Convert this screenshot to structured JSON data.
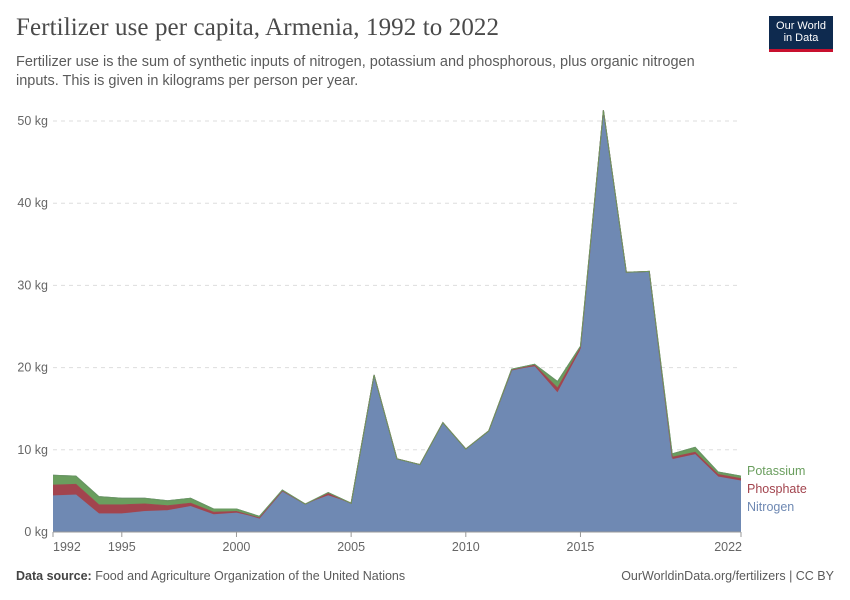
{
  "header": {
    "title": "Fertilizer use per capita, Armenia, 1992 to 2022",
    "subtitle": "Fertilizer use is the sum of synthetic inputs of nitrogen, potassium and phosphorous, plus organic nitrogen inputs. This is given in kilograms per person per year."
  },
  "logo": {
    "line1": "Our World",
    "line2": "in Data",
    "bg": "#0e2a4f",
    "accent": "#c8102e"
  },
  "footer": {
    "source_label": "Data source:",
    "source_text": "Food and Agriculture Organization of the United Nations",
    "license": "OurWorldinData.org/fertilizers | CC BY"
  },
  "chart_data": {
    "type": "area",
    "stacked": true,
    "title": "Fertilizer use per capita, Armenia, 1992 to 2022",
    "xlabel": "",
    "ylabel": "",
    "xlim": [
      1992,
      2022
    ],
    "ylim": [
      0,
      50
    ],
    "y_ticks": [
      0,
      10,
      20,
      30,
      40,
      50
    ],
    "y_tick_labels": [
      "0 kg",
      "10 kg",
      "20 kg",
      "30 kg",
      "40 kg",
      "50 kg"
    ],
    "x_ticks": [
      1992,
      1995,
      2000,
      2005,
      2010,
      2015,
      2022
    ],
    "x_tick_labels": [
      "1992",
      "1995",
      "2000",
      "2005",
      "2010",
      "2015",
      "2022"
    ],
    "grid": true,
    "legend_position": "right-end",
    "x": [
      1992,
      1993,
      1994,
      1995,
      1996,
      1997,
      1998,
      1999,
      2000,
      2001,
      2002,
      2003,
      2004,
      2005,
      2006,
      2007,
      2008,
      2009,
      2010,
      2011,
      2012,
      2013,
      2014,
      2015,
      2016,
      2017,
      2018,
      2019,
      2020,
      2021,
      2022
    ],
    "series": [
      {
        "name": "Nitrogen",
        "color": "#6f89b3",
        "values": [
          4.4,
          4.5,
          2.2,
          2.2,
          2.5,
          2.6,
          3.1,
          2.1,
          2.3,
          1.7,
          5.0,
          3.4,
          4.4,
          3.5,
          19.1,
          8.9,
          8.2,
          13.3,
          10.1,
          12.3,
          19.7,
          20.1,
          16.9,
          22.1,
          51.3,
          31.6,
          31.7,
          8.8,
          9.4,
          6.7,
          6.2
        ]
      },
      {
        "name": "Phosphate",
        "color": "#a2444e",
        "values": [
          1.3,
          1.3,
          1.1,
          1.1,
          0.9,
          0.6,
          0.4,
          0.3,
          0.2,
          0.0,
          0.0,
          0.0,
          0.3,
          0.0,
          0.0,
          0.0,
          0.0,
          0.0,
          0.0,
          0.0,
          0.0,
          0.2,
          0.6,
          0.3,
          0.0,
          0.0,
          0.0,
          0.3,
          0.3,
          0.3,
          0.3
        ]
      },
      {
        "name": "Potassium",
        "color": "#6a9e5e",
        "values": [
          1.2,
          1.0,
          1.0,
          0.8,
          0.7,
          0.6,
          0.6,
          0.4,
          0.3,
          0.2,
          0.1,
          0.0,
          0.1,
          0.0,
          0.0,
          0.0,
          0.0,
          0.0,
          0.0,
          0.0,
          0.1,
          0.1,
          0.8,
          0.2,
          0.0,
          0.0,
          0.0,
          0.4,
          0.6,
          0.3,
          0.3
        ]
      }
    ]
  }
}
